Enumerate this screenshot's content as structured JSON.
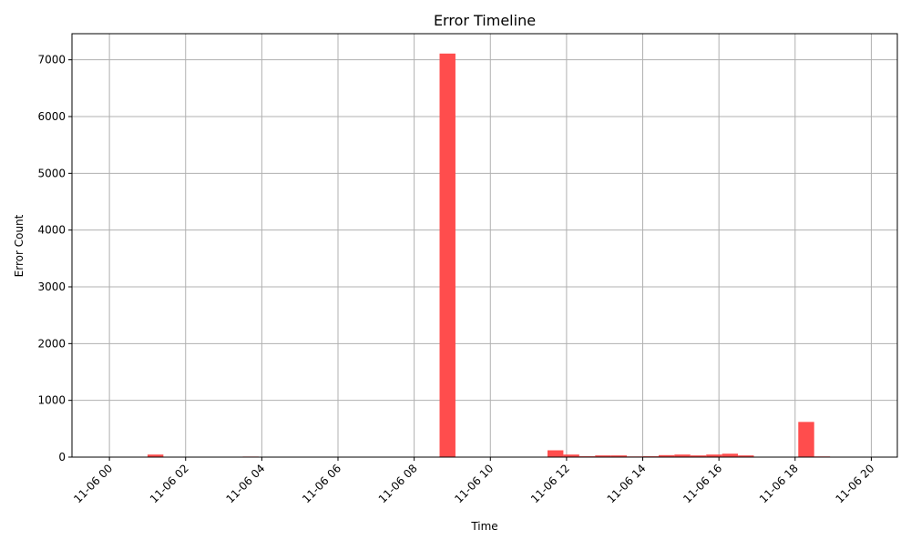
{
  "chart_data": {
    "type": "bar",
    "title": "Error Timeline",
    "xlabel": "Time",
    "ylabel": "Error Count",
    "ylim": [
      0,
      7460
    ],
    "xlim": [
      "2023-11-05T23:01",
      "2023-11-06T20:41"
    ],
    "yticks": [
      0,
      1000,
      2000,
      3000,
      4000,
      5000,
      6000,
      7000
    ],
    "xtick_values": [
      "2023-11-06T00:00",
      "2023-11-06T02:00",
      "2023-11-06T04:00",
      "2023-11-06T06:00",
      "2023-11-06T08:00",
      "2023-11-06T10:00",
      "2023-11-06T12:00",
      "2023-11-06T14:00",
      "2023-11-06T16:00",
      "2023-11-06T18:00",
      "2023-11-06T20:00"
    ],
    "xtick_labels": [
      "11-06 00",
      "11-06 02",
      "11-06 04",
      "11-06 06",
      "11-06 08",
      "11-06 10",
      "11-06 12",
      "11-06 14",
      "11-06 16",
      "11-06 18",
      "11-06 20"
    ],
    "bar_width_minutes": 25,
    "grid": true,
    "bar_color": "#ff4d4d",
    "grid_color": "#b0b0b0",
    "bars": [
      {
        "x": "2023-11-06T01:00",
        "value": 45
      },
      {
        "x": "2023-11-06T03:30",
        "value": 10
      },
      {
        "x": "2023-11-06T06:20",
        "value": 8
      },
      {
        "x": "2023-11-06T08:40",
        "value": 7110
      },
      {
        "x": "2023-11-06T09:50",
        "value": 8
      },
      {
        "x": "2023-11-06T10:40",
        "value": 8
      },
      {
        "x": "2023-11-06T11:30",
        "value": 120
      },
      {
        "x": "2023-11-06T11:55",
        "value": 45
      },
      {
        "x": "2023-11-06T12:20",
        "value": 15
      },
      {
        "x": "2023-11-06T12:45",
        "value": 30
      },
      {
        "x": "2023-11-06T13:10",
        "value": 30
      },
      {
        "x": "2023-11-06T13:35",
        "value": 12
      },
      {
        "x": "2023-11-06T14:00",
        "value": 15
      },
      {
        "x": "2023-11-06T14:25",
        "value": 35
      },
      {
        "x": "2023-11-06T14:50",
        "value": 45
      },
      {
        "x": "2023-11-06T15:15",
        "value": 30
      },
      {
        "x": "2023-11-06T15:40",
        "value": 45
      },
      {
        "x": "2023-11-06T16:05",
        "value": 60
      },
      {
        "x": "2023-11-06T16:30",
        "value": 30
      },
      {
        "x": "2023-11-06T18:05",
        "value": 620
      },
      {
        "x": "2023-11-06T18:30",
        "value": 12
      },
      {
        "x": "2023-11-06T18:55",
        "value": 8
      }
    ]
  }
}
